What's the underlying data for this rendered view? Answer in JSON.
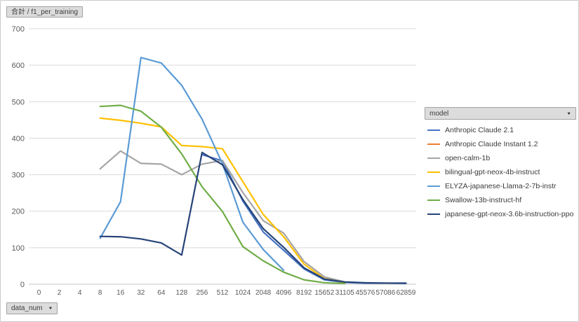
{
  "buttons": {
    "value_field": "合計 / f1_per_training",
    "legend_field": "model",
    "axis_field": "data_num"
  },
  "icons": {
    "dropdown_arrow": "▼"
  },
  "chart_data": {
    "type": "line",
    "title": "合計 / f1_per_training",
    "xlabel": "data_num",
    "ylabel": "",
    "grid": true,
    "legend_position": "right",
    "ylim": [
      0,
      700
    ],
    "yticks": [
      0,
      100,
      200,
      300,
      400,
      500,
      600,
      700
    ],
    "categories": [
      "0",
      "2",
      "4",
      "8",
      "16",
      "32",
      "64",
      "128",
      "256",
      "512",
      "1024",
      "2048",
      "4096",
      "8192",
      "15652",
      "31105",
      "45576",
      "57086",
      "62859"
    ],
    "series": [
      {
        "name": "Anthropic Claude 2.1",
        "color": "#4472C4",
        "values": [
          null,
          null,
          null,
          null,
          null,
          null,
          null,
          null,
          355,
          338,
          228,
          143,
          93,
          42,
          12,
          5,
          3,
          3,
          2
        ]
      },
      {
        "name": "Anthropic Claude Instant 1.2",
        "color": "#ED7D31",
        "values": [
          null,
          null,
          null,
          null,
          null,
          null,
          null,
          null,
          null,
          null,
          null,
          null,
          null,
          null,
          null,
          null,
          null,
          null,
          null
        ]
      },
      {
        "name": "open-calm-1b",
        "color": "#A5A5A5",
        "values": [
          null,
          null,
          null,
          316,
          365,
          331,
          329,
          300,
          329,
          339,
          251,
          174,
          140,
          62,
          20,
          6,
          null,
          null,
          null
        ]
      },
      {
        "name": "bilingual-gpt-neox-4b-instruct",
        "color": "#FFC000",
        "values": [
          null,
          null,
          null,
          455,
          449,
          441,
          431,
          380,
          377,
          371,
          281,
          191,
          130,
          55,
          15,
          5,
          null,
          null,
          null
        ]
      },
      {
        "name": "ELYZA-japanese-Llama-2-7b-instr",
        "color": "#5B9BD5",
        "values": [
          null,
          null,
          null,
          126,
          226,
          621,
          606,
          545,
          452,
          330,
          170,
          95,
          38,
          null,
          null,
          null,
          null,
          null,
          null
        ]
      },
      {
        "name": "Swallow-13b-instruct-hf",
        "color": "#70AD47",
        "values": [
          null,
          null,
          null,
          487,
          490,
          474,
          430,
          357,
          267,
          199,
          103,
          64,
          33,
          12,
          4,
          2,
          null,
          null,
          null
        ]
      },
      {
        "name": "japanese-gpt-neox-3.6b-instruction-ppo",
        "color": "#264478",
        "values": [
          null,
          null,
          null,
          131,
          130,
          124,
          113,
          80,
          361,
          327,
          232,
          152,
          101,
          45,
          14,
          6,
          4,
          3,
          3
        ]
      }
    ]
  }
}
